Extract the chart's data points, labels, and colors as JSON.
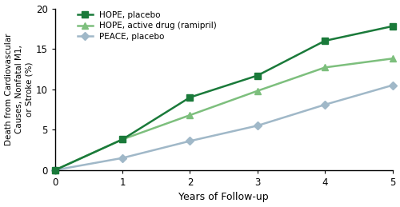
{
  "hope_placebo_x": [
    0,
    1,
    2,
    3,
    4,
    5
  ],
  "hope_placebo_y": [
    0,
    3.8,
    9.0,
    11.7,
    16.0,
    17.8
  ],
  "hope_drug_x": [
    0,
    1,
    2,
    3,
    4,
    5
  ],
  "hope_drug_y": [
    0,
    3.8,
    6.8,
    9.8,
    12.7,
    13.8
  ],
  "peace_placebo_x": [
    0,
    1,
    2,
    3,
    4,
    5
  ],
  "peace_placebo_y": [
    0,
    1.5,
    3.6,
    5.5,
    8.1,
    10.5
  ],
  "hope_placebo_color": "#1a7a3a",
  "hope_drug_color": "#7dbf7d",
  "peace_placebo_color": "#a0b8c8",
  "xlabel": "Years of Follow-up",
  "ylabel": "Death from Cardiovascular\nCauses, Nonfatal M1,\nor Stroke (%)",
  "ylim": [
    0,
    20
  ],
  "xlim": [
    0,
    5
  ],
  "yticks": [
    0,
    5,
    10,
    15,
    20
  ],
  "xticks": [
    0,
    1,
    2,
    3,
    4,
    5
  ],
  "legend_labels": [
    "HOPE, placebo",
    "HOPE, active drug (ramipril)",
    "PEACE, placebo"
  ],
  "marker_hope_placebo": "s",
  "marker_hope_drug": "^",
  "marker_peace_placebo": "D",
  "linewidth": 1.8,
  "markersize": 5.5
}
